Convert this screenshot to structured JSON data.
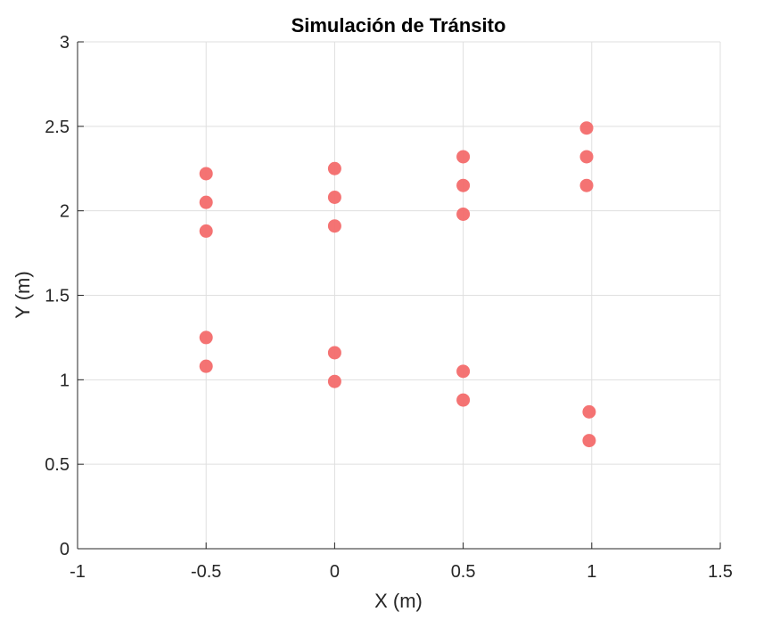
{
  "chart_data": {
    "type": "scatter",
    "title": "Simulación de Tránsito",
    "xlabel": "X (m)",
    "ylabel": "Y (m)",
    "xlim": [
      -1,
      1.5
    ],
    "ylim": [
      0,
      3
    ],
    "xticks": [
      -1,
      -0.5,
      0,
      0.5,
      1,
      1.5
    ],
    "xtick_labels": [
      "-1",
      "-0.5",
      "0",
      "0.5",
      "1",
      "1.5"
    ],
    "yticks": [
      0,
      0.5,
      1,
      1.5,
      2,
      2.5,
      3
    ],
    "ytick_labels": [
      "0",
      "0.5",
      "1",
      "1.5",
      "2",
      "2.5",
      "3"
    ],
    "grid": true,
    "marker_color": "#f36b6b",
    "series": [
      {
        "points": [
          {
            "x": -0.5,
            "y": 2.22
          },
          {
            "x": -0.5,
            "y": 2.05
          },
          {
            "x": -0.5,
            "y": 1.88
          },
          {
            "x": -0.5,
            "y": 1.25
          },
          {
            "x": -0.5,
            "y": 1.08
          },
          {
            "x": 0.0,
            "y": 2.25
          },
          {
            "x": 0.0,
            "y": 2.08
          },
          {
            "x": 0.0,
            "y": 1.91
          },
          {
            "x": 0.0,
            "y": 1.16
          },
          {
            "x": 0.0,
            "y": 0.99
          },
          {
            "x": 0.5,
            "y": 2.32
          },
          {
            "x": 0.5,
            "y": 2.15
          },
          {
            "x": 0.5,
            "y": 1.98
          },
          {
            "x": 0.5,
            "y": 1.05
          },
          {
            "x": 0.5,
            "y": 0.88
          },
          {
            "x": 0.98,
            "y": 2.49
          },
          {
            "x": 0.98,
            "y": 2.32
          },
          {
            "x": 0.98,
            "y": 2.15
          },
          {
            "x": 0.99,
            "y": 0.81
          },
          {
            "x": 0.99,
            "y": 0.64
          }
        ]
      }
    ]
  }
}
